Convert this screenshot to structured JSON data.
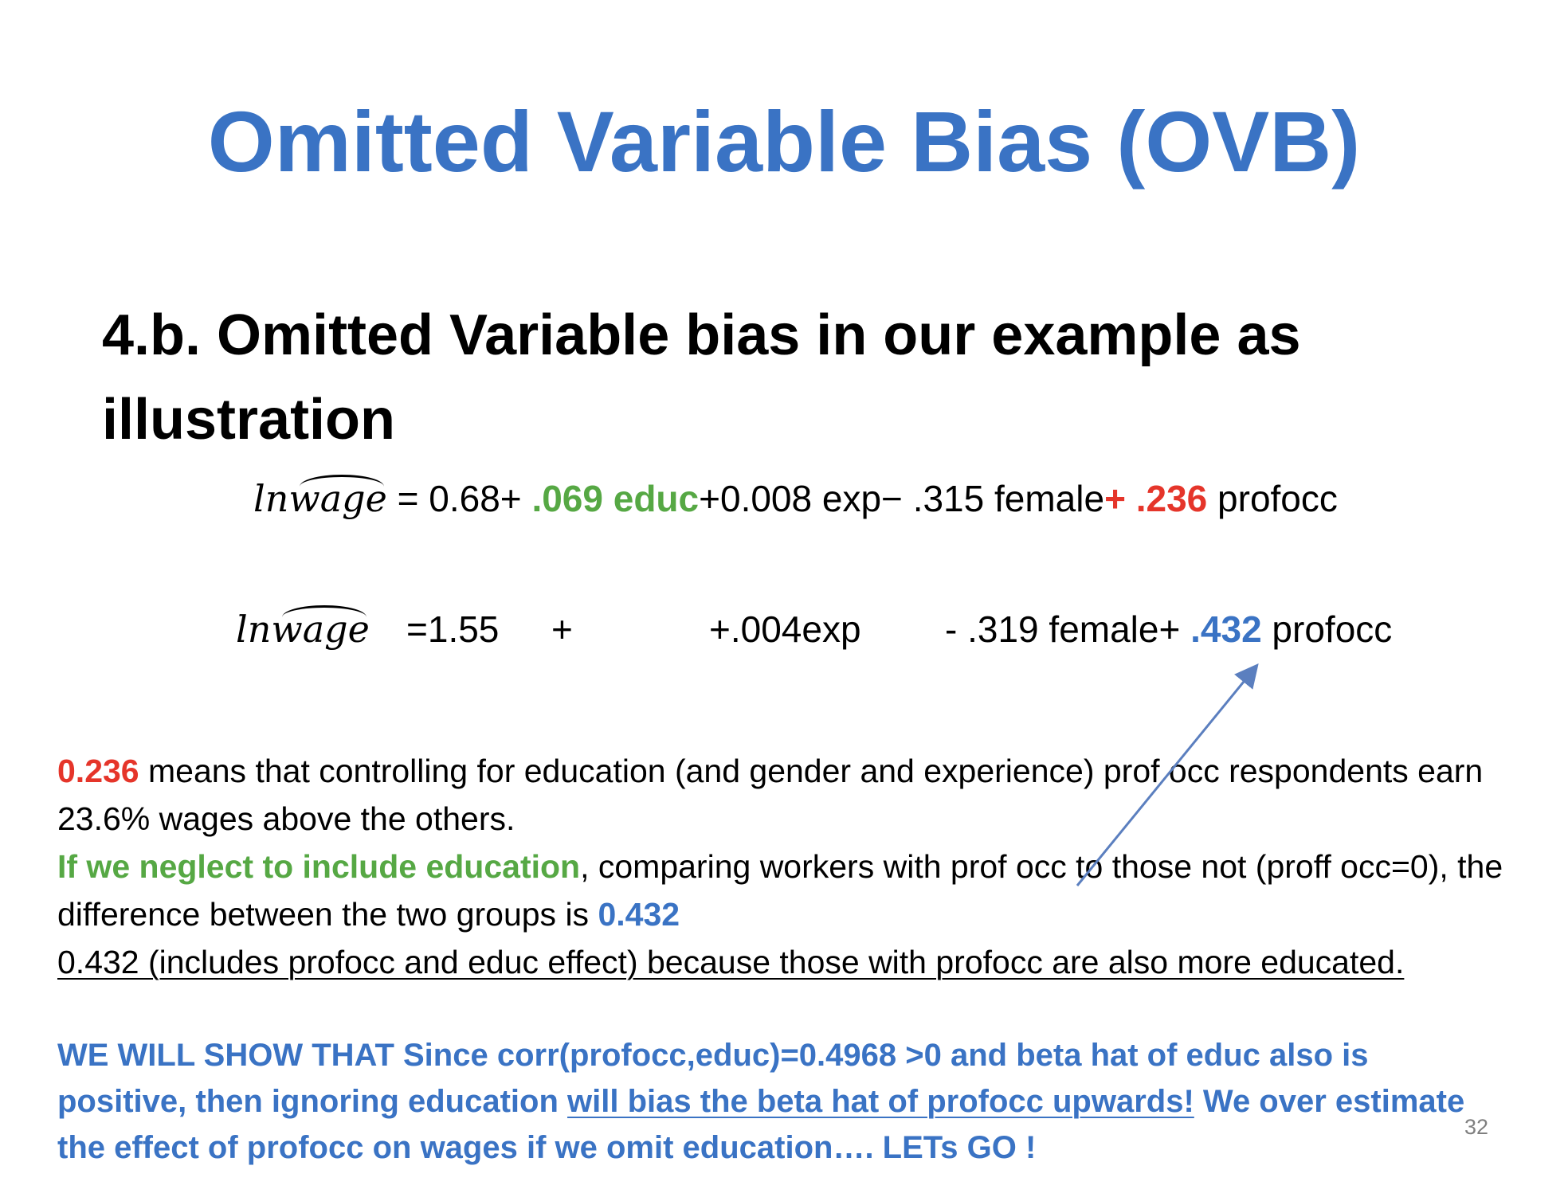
{
  "slide": {
    "title": "Omitted Variable Bias (OVB)",
    "subheading": "4.b. Omitted Variable bias in our example as illustration",
    "page_number": "32"
  },
  "equation1": {
    "lhs": "lnwage",
    "eq_sign": " = ",
    "const": "0.68+ ",
    "educ_term": ".069 educ",
    "exp_term": "+0.008 exp− .315 female",
    "prof_plus": "+ .236",
    "prof_label": " profocc"
  },
  "equation2": {
    "lhs": "lnwage",
    "const": "=1.55",
    "plus": "+",
    "exp_term": "+.004exp",
    "female_term": "- .319 female+ ",
    "prof_coef": ".432",
    "prof_label": " profocc"
  },
  "body": {
    "p1_coef": "0.236",
    "p1_text": " means that controlling for education (and gender and experience) prof occ respondents earn 23.6% wages above the others.",
    "p2_lead": "If we neglect to include education",
    "p2_text": ", comparing workers with prof occ to those not (proff occ=0), the difference between the two groups is ",
    "p2_coef": "0.432",
    "p3_text": "0.432 (includes profocc and educ effect) because those with profocc are also more educated."
  },
  "conclusion": {
    "part1": "WE WILL SHOW THAT Since corr(profocc,educ)=0.4968 >0 and beta hat of educ also is positive, then ignoring education ",
    "underlined": "will bias the beta hat of profocc upwards!",
    "part2": " We over estimate the effect of profocc on wages if we omit education…. LETs GO !"
  },
  "colors": {
    "title_blue": "#3a73c4",
    "green": "#56a844",
    "red": "#e5352a",
    "arrow": "#5b7fbf"
  }
}
